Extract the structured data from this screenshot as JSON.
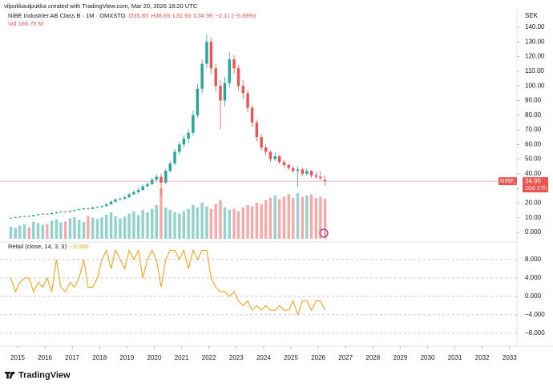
{
  "header": "vilpukkaulpukka created with TradingView.com, Mar 20, 2026 18:20 UTC",
  "brand": "TradingView",
  "chart_data": {
    "type": "candlestick",
    "title": "NIBE Industrier AB Class B · 1M · OMXSTO",
    "ohlc_labels": [
      "O35.85",
      "H38.65",
      "L31.93",
      "C34.96",
      "−2.11 (−5.69%)"
    ],
    "volume_label": "Vol 166.75 M",
    "currency": "SEK",
    "symbol": "NIBE_B",
    "last_price": 34.96,
    "countdown": "10d 27h",
    "up_color": "#26a69a",
    "down_color": "#ef5350",
    "x": [
      2014.75,
      2014.92,
      2015.08,
      2015.25,
      2015.42,
      2015.58,
      2015.75,
      2015.92,
      2016.08,
      2016.25,
      2016.42,
      2016.58,
      2016.75,
      2016.92,
      2017.08,
      2017.25,
      2017.42,
      2017.58,
      2017.75,
      2017.92,
      2018.08,
      2018.25,
      2018.42,
      2018.58,
      2018.75,
      2018.92,
      2019.08,
      2019.25,
      2019.42,
      2019.58,
      2019.75,
      2019.92,
      2020.08,
      2020.25,
      2020.42,
      2020.58,
      2020.75,
      2020.92,
      2021.08,
      2021.25,
      2021.42,
      2021.58,
      2021.75,
      2021.92,
      2022.08,
      2022.25,
      2022.42,
      2022.58,
      2022.75,
      2022.92,
      2023.08,
      2023.25,
      2023.42,
      2023.58,
      2023.75,
      2023.92,
      2024.08,
      2024.25,
      2024.42,
      2024.58,
      2024.75,
      2024.92,
      2025.08,
      2025.25,
      2025.42,
      2025.58,
      2025.75,
      2025.92,
      2026.08,
      2026.25
    ],
    "open": [
      9.6,
      10.0,
      10.3,
      10.8,
      11.2,
      11.0,
      11.8,
      12.4,
      12.8,
      12.5,
      13.2,
      13.8,
      14.2,
      14.0,
      14.6,
      15.2,
      15.8,
      16.3,
      16.0,
      17.0,
      17.4,
      18.0,
      19.2,
      21.0,
      22.5,
      23.0,
      24.0,
      26.0,
      27.5,
      29.0,
      31.5,
      33.0,
      36.0,
      38.0,
      34.0,
      42.0,
      47.0,
      55.0,
      60.0,
      64.0,
      68.0,
      80.0,
      98.0,
      115.0,
      130.0,
      112.0,
      100.0,
      90.0,
      102.0,
      118.0,
      112.0,
      100.0,
      95.0,
      85.0,
      75.0,
      65.0,
      58.0,
      55.0,
      50.0,
      52.0,
      48.0,
      46.0,
      44.0,
      42.0,
      43.0,
      40.0,
      42.0,
      39.0,
      38.0,
      35.85
    ],
    "high": [
      10.3,
      10.6,
      11.0,
      11.5,
      11.6,
      12.1,
      12.8,
      13.2,
      13.1,
      13.6,
      14.2,
      14.6,
      14.5,
      15.0,
      15.6,
      16.3,
      16.8,
      16.7,
      17.5,
      17.9,
      18.6,
      19.8,
      21.8,
      23.3,
      23.8,
      24.9,
      27.0,
      28.6,
      30.2,
      32.6,
      34.3,
      37.4,
      39.6,
      40.0,
      43.5,
      48.8,
      57.0,
      62.0,
      66.5,
      70.5,
      83.0,
      101.0,
      118.0,
      135.0,
      133.0,
      115.0,
      104.0,
      106.0,
      123.0,
      121.0,
      114.0,
      104.0,
      97.0,
      87.0,
      77.0,
      67.0,
      60.0,
      56.0,
      54.5,
      53.0,
      49.5,
      47.0,
      45.0,
      45.0,
      44.0,
      43.5,
      42.5,
      41.0,
      41.5,
      38.65
    ],
    "low": [
      9.4,
      9.8,
      10.1,
      10.6,
      10.7,
      10.8,
      11.5,
      12.1,
      12.0,
      12.3,
      13.0,
      13.5,
      13.6,
      13.8,
      14.3,
      15.0,
      15.5,
      15.6,
      15.8,
      16.6,
      17.0,
      17.7,
      18.9,
      20.5,
      21.6,
      22.4,
      23.5,
      25.4,
      26.8,
      28.5,
      30.6,
      32.4,
      35.0,
      25.0,
      33.0,
      41.0,
      46.0,
      53.0,
      58.0,
      61.0,
      66.0,
      78.0,
      95.0,
      112.0,
      108.0,
      96.0,
      70.0,
      86.0,
      99.0,
      108.0,
      97.0,
      91.0,
      82.0,
      72.0,
      62.0,
      56.0,
      53.0,
      48.0,
      48.5,
      46.5,
      44.5,
      42.5,
      40.5,
      31.0,
      38.5,
      39.0,
      37.5,
      36.5,
      35.5,
      31.93
    ],
    "close": [
      10.0,
      10.3,
      10.8,
      11.2,
      11.0,
      11.8,
      12.4,
      12.8,
      12.5,
      13.2,
      13.8,
      14.2,
      14.0,
      14.6,
      15.2,
      15.8,
      16.3,
      16.0,
      17.0,
      17.4,
      18.0,
      19.2,
      21.0,
      22.5,
      23.0,
      24.0,
      26.0,
      27.5,
      29.0,
      31.5,
      33.0,
      36.0,
      38.0,
      34.0,
      42.0,
      47.0,
      55.0,
      60.0,
      64.0,
      68.0,
      80.0,
      98.0,
      115.0,
      130.0,
      112.0,
      100.0,
      90.0,
      102.0,
      118.0,
      112.0,
      100.0,
      95.0,
      85.0,
      75.0,
      65.0,
      58.0,
      55.0,
      50.0,
      52.0,
      48.0,
      46.0,
      44.0,
      42.0,
      43.0,
      40.0,
      42.0,
      39.0,
      38.0,
      37.07,
      34.96
    ],
    "volume": [
      50,
      45,
      55,
      60,
      48,
      70,
      65,
      58,
      62,
      75,
      80,
      68,
      72,
      85,
      90,
      78,
      70,
      95,
      88,
      82,
      90,
      100,
      110,
      95,
      85,
      92,
      105,
      115,
      98,
      120,
      110,
      125,
      140,
      210,
      130,
      120,
      110,
      105,
      115,
      125,
      140,
      130,
      150,
      135,
      125,
      145,
      160,
      130,
      120,
      125,
      115,
      130,
      140,
      135,
      150,
      145,
      160,
      170,
      180,
      165,
      175,
      185,
      170,
      190,
      175,
      180,
      185,
      170,
      175,
      166.75
    ],
    "volume_lim": [
      0,
      960
    ],
    "xlim": [
      2014.355,
      2033.27
    ],
    "xticks": [
      2015,
      2016,
      2017,
      2018,
      2019,
      2020,
      2021,
      2022,
      2023,
      2024,
      2025,
      2026,
      2027,
      2028,
      2029,
      2030,
      2031,
      2032,
      2033
    ],
    "ylim": [
      -5.4,
      152
    ],
    "yticks": [
      {
        "value": 0,
        "label": "0.000"
      },
      {
        "value": 10,
        "label": "10.00"
      },
      {
        "value": 20,
        "label": "20.00"
      },
      {
        "value": 30,
        "label": "30.00"
      },
      {
        "value": 40,
        "label": "40.00"
      },
      {
        "value": 50,
        "label": "50.00"
      },
      {
        "value": 60,
        "label": "60.00"
      },
      {
        "value": 70,
        "label": "70.00"
      },
      {
        "value": 80,
        "label": "80.00"
      },
      {
        "value": 90,
        "label": "90.00"
      },
      {
        "value": 100,
        "label": "100.00"
      },
      {
        "value": 110,
        "label": "110.00"
      },
      {
        "value": 120,
        "label": "120.00"
      },
      {
        "value": 130,
        "label": "130.00"
      },
      {
        "value": 140,
        "label": "140.00"
      }
    ],
    "indicator": {
      "name": "Retail (close, 14, 3, 3)",
      "value_label": "−3.000",
      "color": "#f7a21b",
      "values": [
        4,
        1,
        3,
        4,
        4,
        1,
        3,
        2,
        4,
        1,
        8,
        2,
        1,
        3,
        2,
        4,
        8,
        2,
        2,
        4,
        8,
        10,
        6,
        10,
        8,
        6,
        10,
        8,
        10,
        4,
        8,
        10,
        8,
        2,
        8,
        10,
        10,
        8,
        10,
        6,
        10,
        8,
        10,
        10,
        4,
        2,
        1,
        1,
        0,
        1,
        -1,
        -2,
        -1,
        -3,
        -2,
        -3,
        -2,
        -3,
        -3,
        -2,
        -3,
        -3,
        -1,
        -4,
        -1,
        -1,
        -3,
        -1,
        -1,
        -3
      ],
      "ylim": [
        -10.8,
        11.8
      ],
      "yticks": [
        {
          "value": 8,
          "label": "8.000"
        },
        {
          "value": 4,
          "label": "4.000"
        },
        {
          "value": 0,
          "label": "0.000"
        },
        {
          "value": -4,
          "label": "−4.000"
        },
        {
          "value": -8,
          "label": "−8.000"
        }
      ],
      "grid": true
    }
  }
}
